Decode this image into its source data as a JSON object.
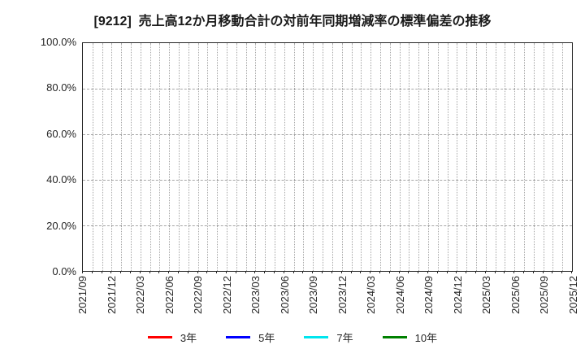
{
  "figure": {
    "title": "[9212]  売上高12か月移動合計の対前年同期増減率の標準偏差の推移"
  },
  "y_axis": {
    "min": 0,
    "max": 100,
    "step": 20,
    "tick_labels": [
      "0.0%",
      "20.0%",
      "40.0%",
      "60.0%",
      "80.0%",
      "100.0%"
    ]
  },
  "x_axis": {
    "tick_labels": [
      "2021/09",
      "2021/12",
      "2022/03",
      "2022/06",
      "2022/09",
      "2022/12",
      "2023/03",
      "2023/06",
      "2023/09",
      "2023/12",
      "2024/03",
      "2024/06",
      "2024/09",
      "2024/12",
      "2025/03",
      "2025/06",
      "2025/09",
      "2025/12"
    ],
    "minor_ticks_per_major": 3
  },
  "grid": {
    "color": "#a6a6a6",
    "vertical_style": "dotted, one line per month",
    "horizontal_style": "dash-dot, at every 20%"
  },
  "legend": {
    "items": [
      {
        "label": "3年",
        "color": "#ff0000"
      },
      {
        "label": "5年",
        "color": "#0000ff"
      },
      {
        "label": "7年",
        "color": "#00e5ee"
      },
      {
        "label": "10年",
        "color": "#008000"
      }
    ]
  },
  "chart_data": {
    "type": "line",
    "title": "[9212]  売上高12か月移動合計の対前年同期増減率の標準偏差の推移",
    "x": [
      "2021/09",
      "2021/12",
      "2022/03",
      "2022/06",
      "2022/09",
      "2022/12",
      "2023/03",
      "2023/06",
      "2023/09",
      "2023/12",
      "2024/03",
      "2024/06",
      "2024/09",
      "2024/12",
      "2025/03",
      "2025/06",
      "2025/09",
      "2025/12"
    ],
    "xlabel": "",
    "ylabel": "",
    "ylim": [
      0,
      100
    ],
    "y_ticks": [
      0,
      20,
      40,
      60,
      80,
      100
    ],
    "y_tick_format": "percent_one_decimal",
    "grid": true,
    "legend_position": "bottom",
    "series": [
      {
        "name": "3年",
        "color": "#ff0000",
        "values": []
      },
      {
        "name": "5年",
        "color": "#0000ff",
        "values": []
      },
      {
        "name": "7年",
        "color": "#00e5ee",
        "values": []
      },
      {
        "name": "10年",
        "color": "#008000",
        "values": []
      }
    ],
    "note": "Plot area is empty: no data lines are drawn; only axes, grid and legend are visible."
  }
}
